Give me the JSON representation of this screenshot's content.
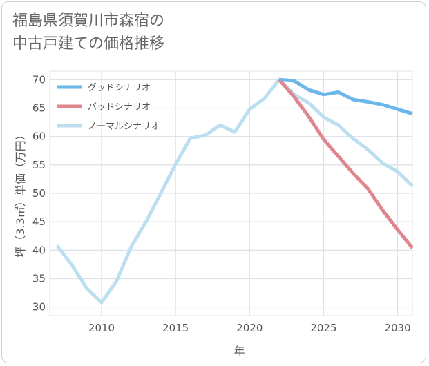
{
  "title_lines": [
    "福島県須賀川市森宿の",
    "中古戸建ての価格推移"
  ],
  "chart_data": {
    "type": "line",
    "title": "福島県須賀川市森宿の中古戸建ての価格推移",
    "xlabel": "年",
    "ylabel": "坪（3.3㎡）単価（万円）",
    "xlim": [
      2006.5,
      2031
    ],
    "ylim": [
      28.5,
      71.5
    ],
    "xticks": [
      2010,
      2015,
      2020,
      2025,
      2030
    ],
    "yticks": [
      30,
      35,
      40,
      45,
      50,
      55,
      60,
      65,
      70
    ],
    "grid": true,
    "legend_position": "top-left",
    "series": [
      {
        "name": "グッドシナリオ",
        "color": "#6bb7ea",
        "x": [
          2022,
          2023,
          2024,
          2025,
          2026,
          2027,
          2028,
          2029,
          2030,
          2031
        ],
        "y": [
          70.0,
          69.8,
          68.2,
          67.4,
          67.8,
          66.5,
          66.1,
          65.6,
          64.8,
          64.0
        ]
      },
      {
        "name": "バッドシナリオ",
        "color": "#e0868f",
        "x": [
          2022,
          2023,
          2024,
          2025,
          2026,
          2027,
          2028,
          2029,
          2030,
          2031
        ],
        "y": [
          70.0,
          67.0,
          63.5,
          59.5,
          56.5,
          53.5,
          50.8,
          47.0,
          43.6,
          40.4
        ]
      },
      {
        "name": "ノーマルシナリオ",
        "color": "#bcdff0",
        "x": [
          2007,
          2008,
          2009,
          2010,
          2011,
          2012,
          2013,
          2014,
          2015,
          2016,
          2017,
          2018,
          2019,
          2020,
          2021,
          2022,
          2023,
          2024,
          2025,
          2026,
          2027,
          2028,
          2029,
          2030,
          2031
        ],
        "y": [
          40.8,
          37.4,
          33.3,
          30.8,
          34.5,
          40.6,
          45.0,
          50.0,
          55.1,
          59.7,
          60.2,
          62.0,
          60.8,
          64.8,
          66.7,
          70.0,
          67.4,
          65.9,
          63.4,
          62.0,
          59.6,
          57.7,
          55.3,
          53.8,
          51.3
        ]
      }
    ]
  }
}
